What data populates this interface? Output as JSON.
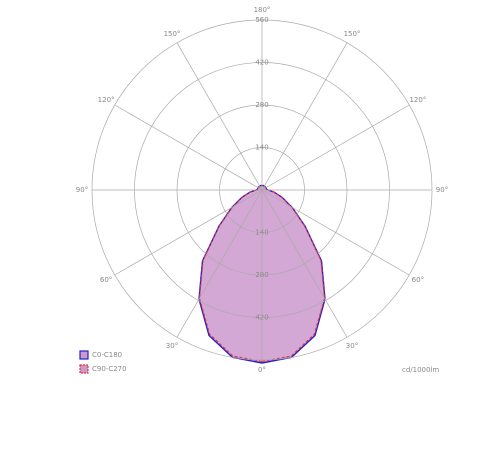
{
  "chart_data": {
    "type": "polar",
    "x": [
      0,
      10,
      20,
      30,
      40,
      50,
      60,
      70,
      80,
      90,
      100,
      110,
      120,
      130,
      140,
      150,
      160,
      170,
      180
    ],
    "series": [
      {
        "name": "C0-C180",
        "color": "#2222cc",
        "values": [
          570,
          560,
          510,
          415,
          305,
          185,
          115,
          70,
          40,
          20,
          15,
          15,
          15,
          15,
          15,
          15,
          15,
          15,
          15
        ]
      },
      {
        "name": "C90-C270",
        "color": "#ee3333",
        "values": [
          565,
          555,
          505,
          412,
          302,
          183,
          113,
          68,
          39,
          19,
          14,
          14,
          14,
          14,
          14,
          14,
          14,
          14,
          14
        ]
      }
    ],
    "rlim": [
      0,
      560
    ],
    "rticks": [
      140,
      280,
      420,
      560
    ],
    "angle_ticks": [
      {
        "value": 0,
        "label": "0°"
      },
      {
        "value": 30,
        "label": "30°"
      },
      {
        "value": 60,
        "label": "60°"
      },
      {
        "value": 90,
        "label": "90°"
      },
      {
        "value": 120,
        "label": "120°"
      },
      {
        "value": 150,
        "label": "150°"
      },
      {
        "value": 180,
        "label": "180°"
      }
    ],
    "fill_color": "#cc99cc",
    "unit_label": "cd/1000lm"
  }
}
